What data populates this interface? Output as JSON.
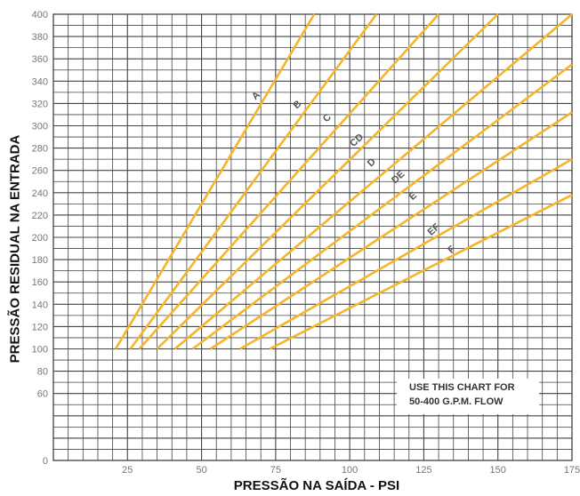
{
  "chart_data": {
    "type": "line",
    "xlabel": "PRESSÃO NA SAÍDA - PSI",
    "ylabel": "PRESSÃO RESIDUAL NA ENTRADA",
    "xlim": [
      0,
      175
    ],
    "ylim": [
      0,
      400
    ],
    "x_ticks": [
      25,
      50,
      75,
      100,
      125,
      150,
      175
    ],
    "y_ticks": [
      0,
      60,
      80,
      100,
      120,
      140,
      160,
      180,
      200,
      220,
      240,
      260,
      280,
      300,
      320,
      340,
      360,
      380,
      400
    ],
    "grid": true,
    "note_lines": [
      "USE THIS CHART FOR",
      "50-400  G.P.M.  FLOW"
    ],
    "series": [
      {
        "name": "A",
        "x": [
          21,
          88
        ],
        "y": [
          100,
          400
        ],
        "label_at": [
          69,
          325
        ]
      },
      {
        "name": "B",
        "x": [
          26,
          109
        ],
        "y": [
          100,
          400
        ],
        "label_at": [
          83,
          317
        ]
      },
      {
        "name": "C",
        "x": [
          29,
          130
        ],
        "y": [
          100,
          400
        ],
        "label_at": [
          93,
          305
        ]
      },
      {
        "name": "CD",
        "x": [
          35,
          150
        ],
        "y": [
          100,
          400
        ],
        "label_at": [
          103,
          285
        ]
      },
      {
        "name": "D",
        "x": [
          41,
          175
        ],
        "y": [
          100,
          400
        ],
        "label_at": [
          108,
          265
        ]
      },
      {
        "name": "DE",
        "x": [
          47,
          175
        ],
        "y": [
          100,
          355
        ],
        "label_at": [
          117,
          252
        ]
      },
      {
        "name": "E",
        "x": [
          53,
          175
        ],
        "y": [
          100,
          312
        ],
        "label_at": [
          122,
          235
        ]
      },
      {
        "name": "EF",
        "x": [
          63,
          175
        ],
        "y": [
          100,
          270
        ],
        "label_at": [
          129,
          205
        ]
      },
      {
        "name": "F",
        "x": [
          73,
          175
        ],
        "y": [
          100,
          238
        ],
        "label_at": [
          135,
          187
        ]
      }
    ]
  }
}
